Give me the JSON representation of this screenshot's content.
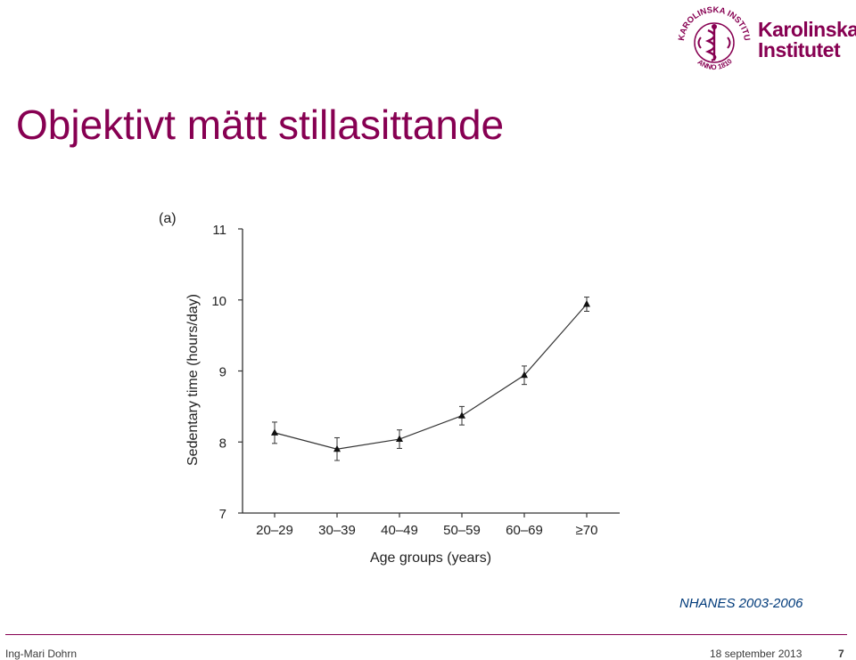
{
  "header": {
    "logo_line1": "Karolinska",
    "logo_line2": "Institutet",
    "seal_text": "KAROLINSKA INSTITUTET",
    "seal_year": "ANNO 1810",
    "brand_color": "#870052"
  },
  "slide": {
    "title": "Objektivt mätt stillasittande",
    "source": "NHANES 2003-2006"
  },
  "footer": {
    "author": "Ing-Mari Dohrn",
    "date": "18 september 2013",
    "page": "7"
  },
  "chart_data": {
    "type": "line",
    "panel_label": "(a)",
    "categories": [
      "20–29",
      "30–39",
      "40–49",
      "50–59",
      "60–69",
      "≥70"
    ],
    "values": [
      8.13,
      7.9,
      8.04,
      8.37,
      8.94,
      9.94
    ],
    "error": [
      0.15,
      0.16,
      0.13,
      0.13,
      0.13,
      0.1
    ],
    "xlabel": "Age groups (years)",
    "ylabel": "Sedentary time (hours/day)",
    "ylim": [
      7,
      11
    ],
    "yticks": [
      7,
      8,
      9,
      10,
      11
    ],
    "marker": "triangle",
    "grid": false,
    "color": "#333333"
  }
}
